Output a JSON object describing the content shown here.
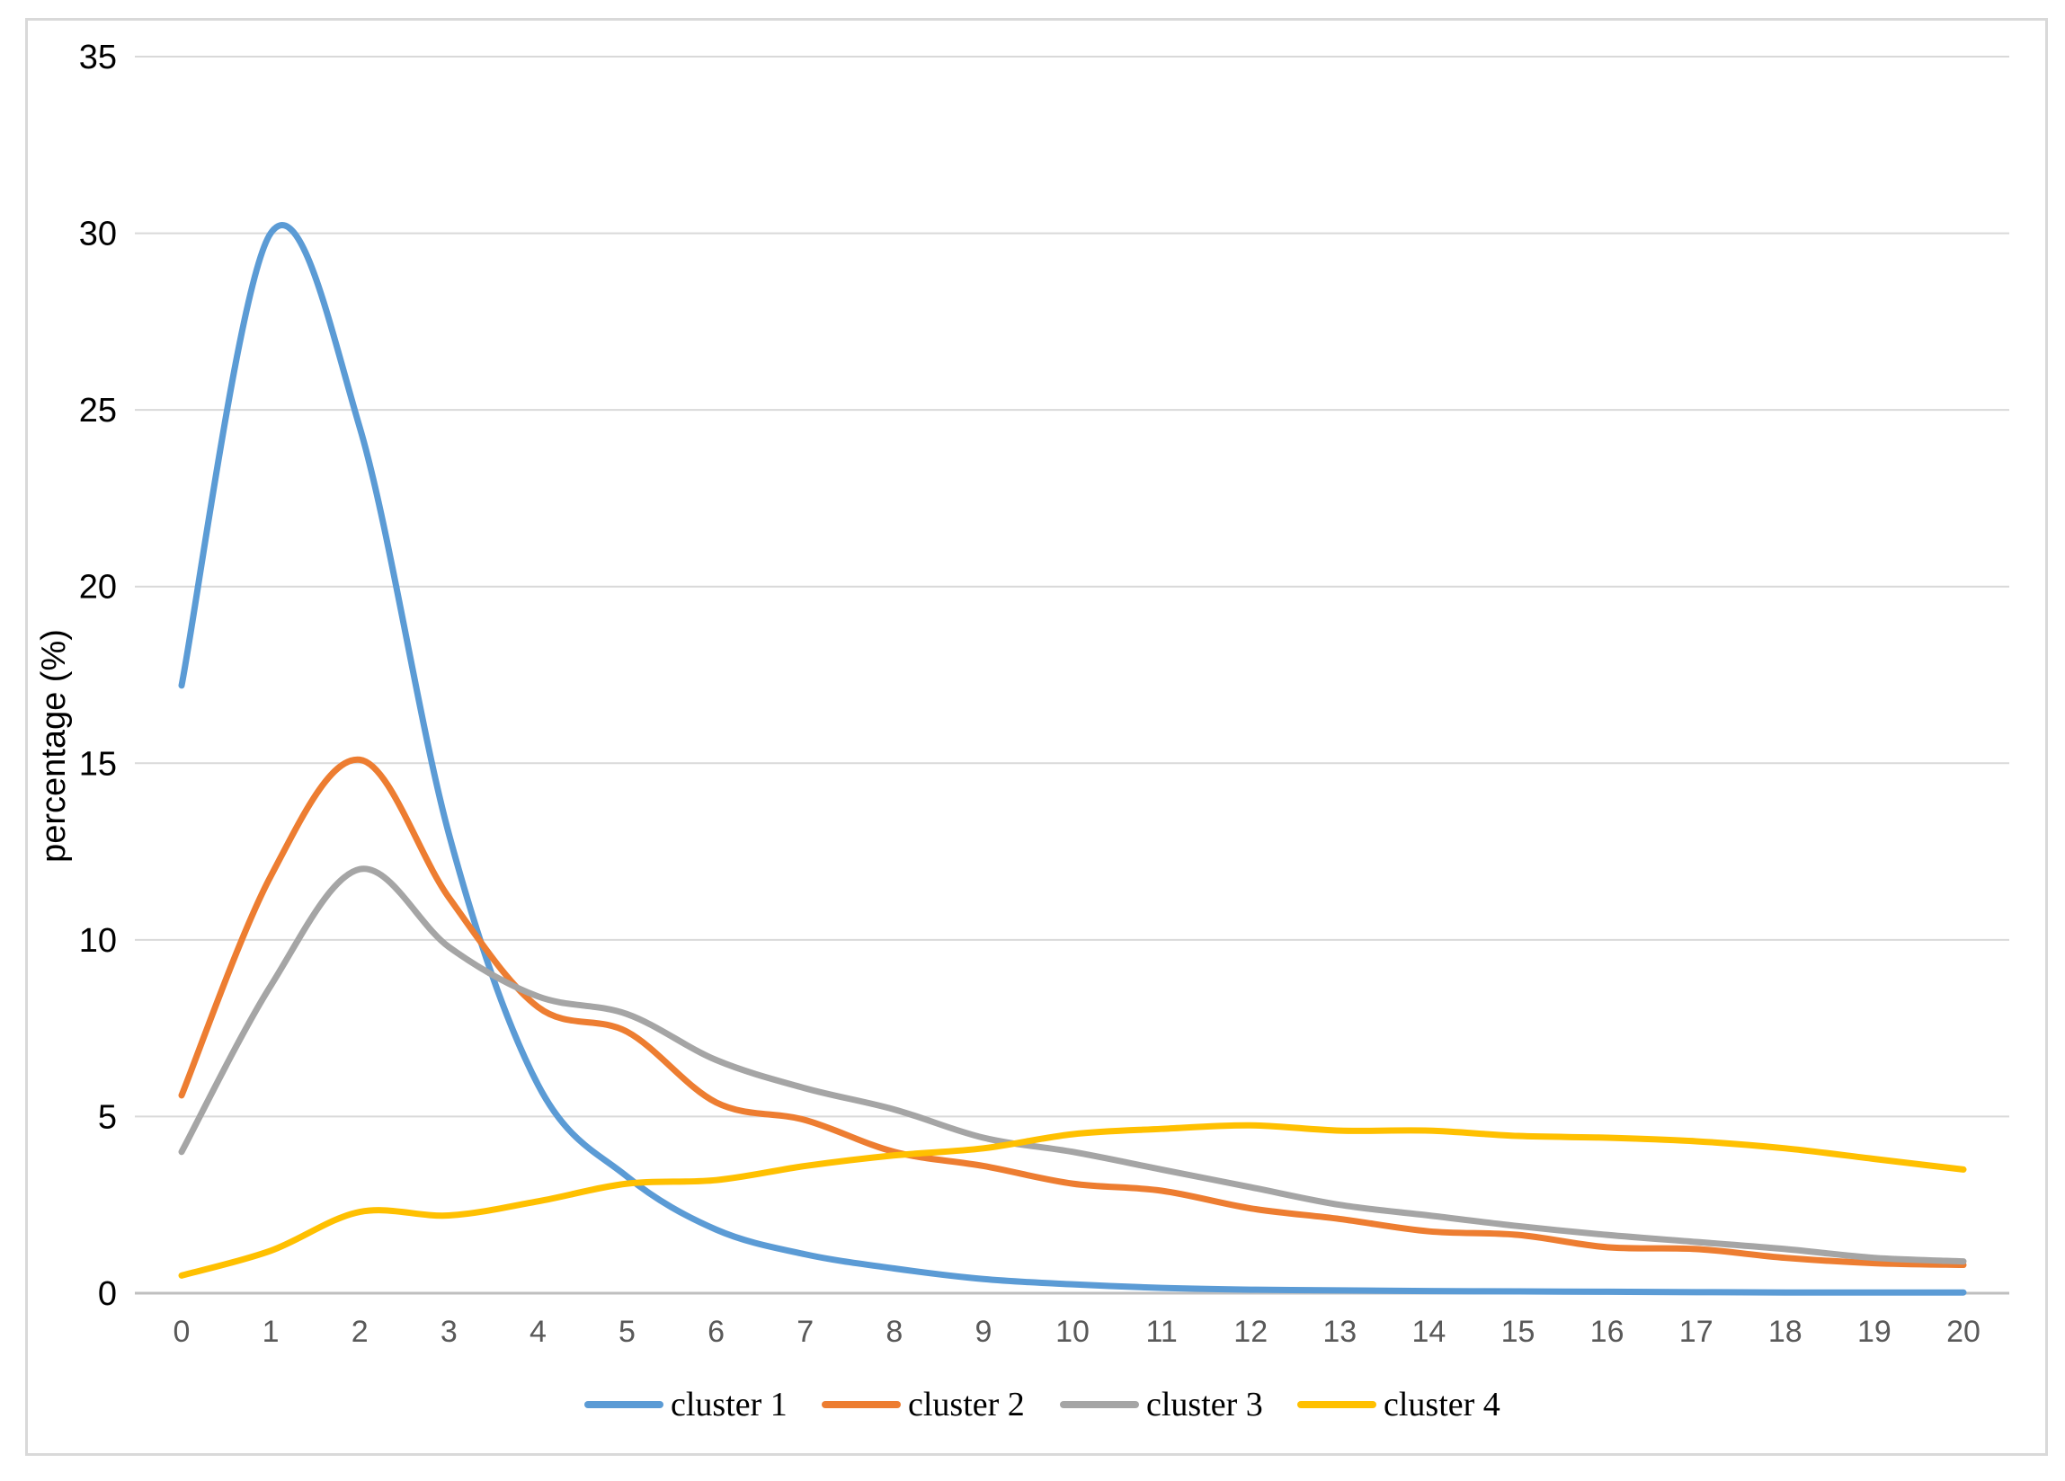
{
  "chart_data": {
    "type": "line",
    "title": "",
    "xlabel": "",
    "ylabel": "percentage (%)",
    "x": [
      0,
      1,
      2,
      3,
      4,
      5,
      6,
      7,
      8,
      9,
      10,
      11,
      12,
      13,
      14,
      15,
      16,
      17,
      18,
      19,
      20
    ],
    "ylim": [
      0,
      35
    ],
    "yticks": [
      0,
      5,
      10,
      15,
      20,
      25,
      30,
      35
    ],
    "grid": true,
    "legend_position": "bottom",
    "smooth": true,
    "series": [
      {
        "name": "cluster 1",
        "color": "#5B9BD5",
        "values": [
          17.2,
          30.0,
          24.5,
          13.0,
          5.9,
          3.3,
          1.8,
          1.1,
          0.7,
          0.4,
          0.25,
          0.15,
          0.1,
          0.08,
          0.06,
          0.05,
          0.04,
          0.03,
          0.02,
          0.02,
          0.02
        ]
      },
      {
        "name": "cluster 2",
        "color": "#ED7D31",
        "values": [
          5.6,
          11.8,
          15.1,
          11.2,
          8.1,
          7.4,
          5.4,
          4.9,
          4.0,
          3.6,
          3.1,
          2.9,
          2.4,
          2.1,
          1.75,
          1.65,
          1.3,
          1.25,
          1.0,
          0.85,
          0.8
        ]
      },
      {
        "name": "cluster 3",
        "color": "#A5A5A5",
        "values": [
          4.0,
          8.7,
          12.0,
          9.8,
          8.4,
          7.9,
          6.6,
          5.8,
          5.2,
          4.4,
          4.0,
          3.5,
          3.0,
          2.5,
          2.2,
          1.9,
          1.65,
          1.45,
          1.25,
          1.0,
          0.9
        ]
      },
      {
        "name": "cluster 4",
        "color": "#FFC000",
        "values": [
          0.5,
          1.2,
          2.3,
          2.2,
          2.6,
          3.1,
          3.2,
          3.6,
          3.9,
          4.1,
          4.5,
          4.65,
          4.75,
          4.6,
          4.6,
          4.45,
          4.4,
          4.3,
          4.1,
          3.8,
          3.5
        ]
      }
    ]
  }
}
